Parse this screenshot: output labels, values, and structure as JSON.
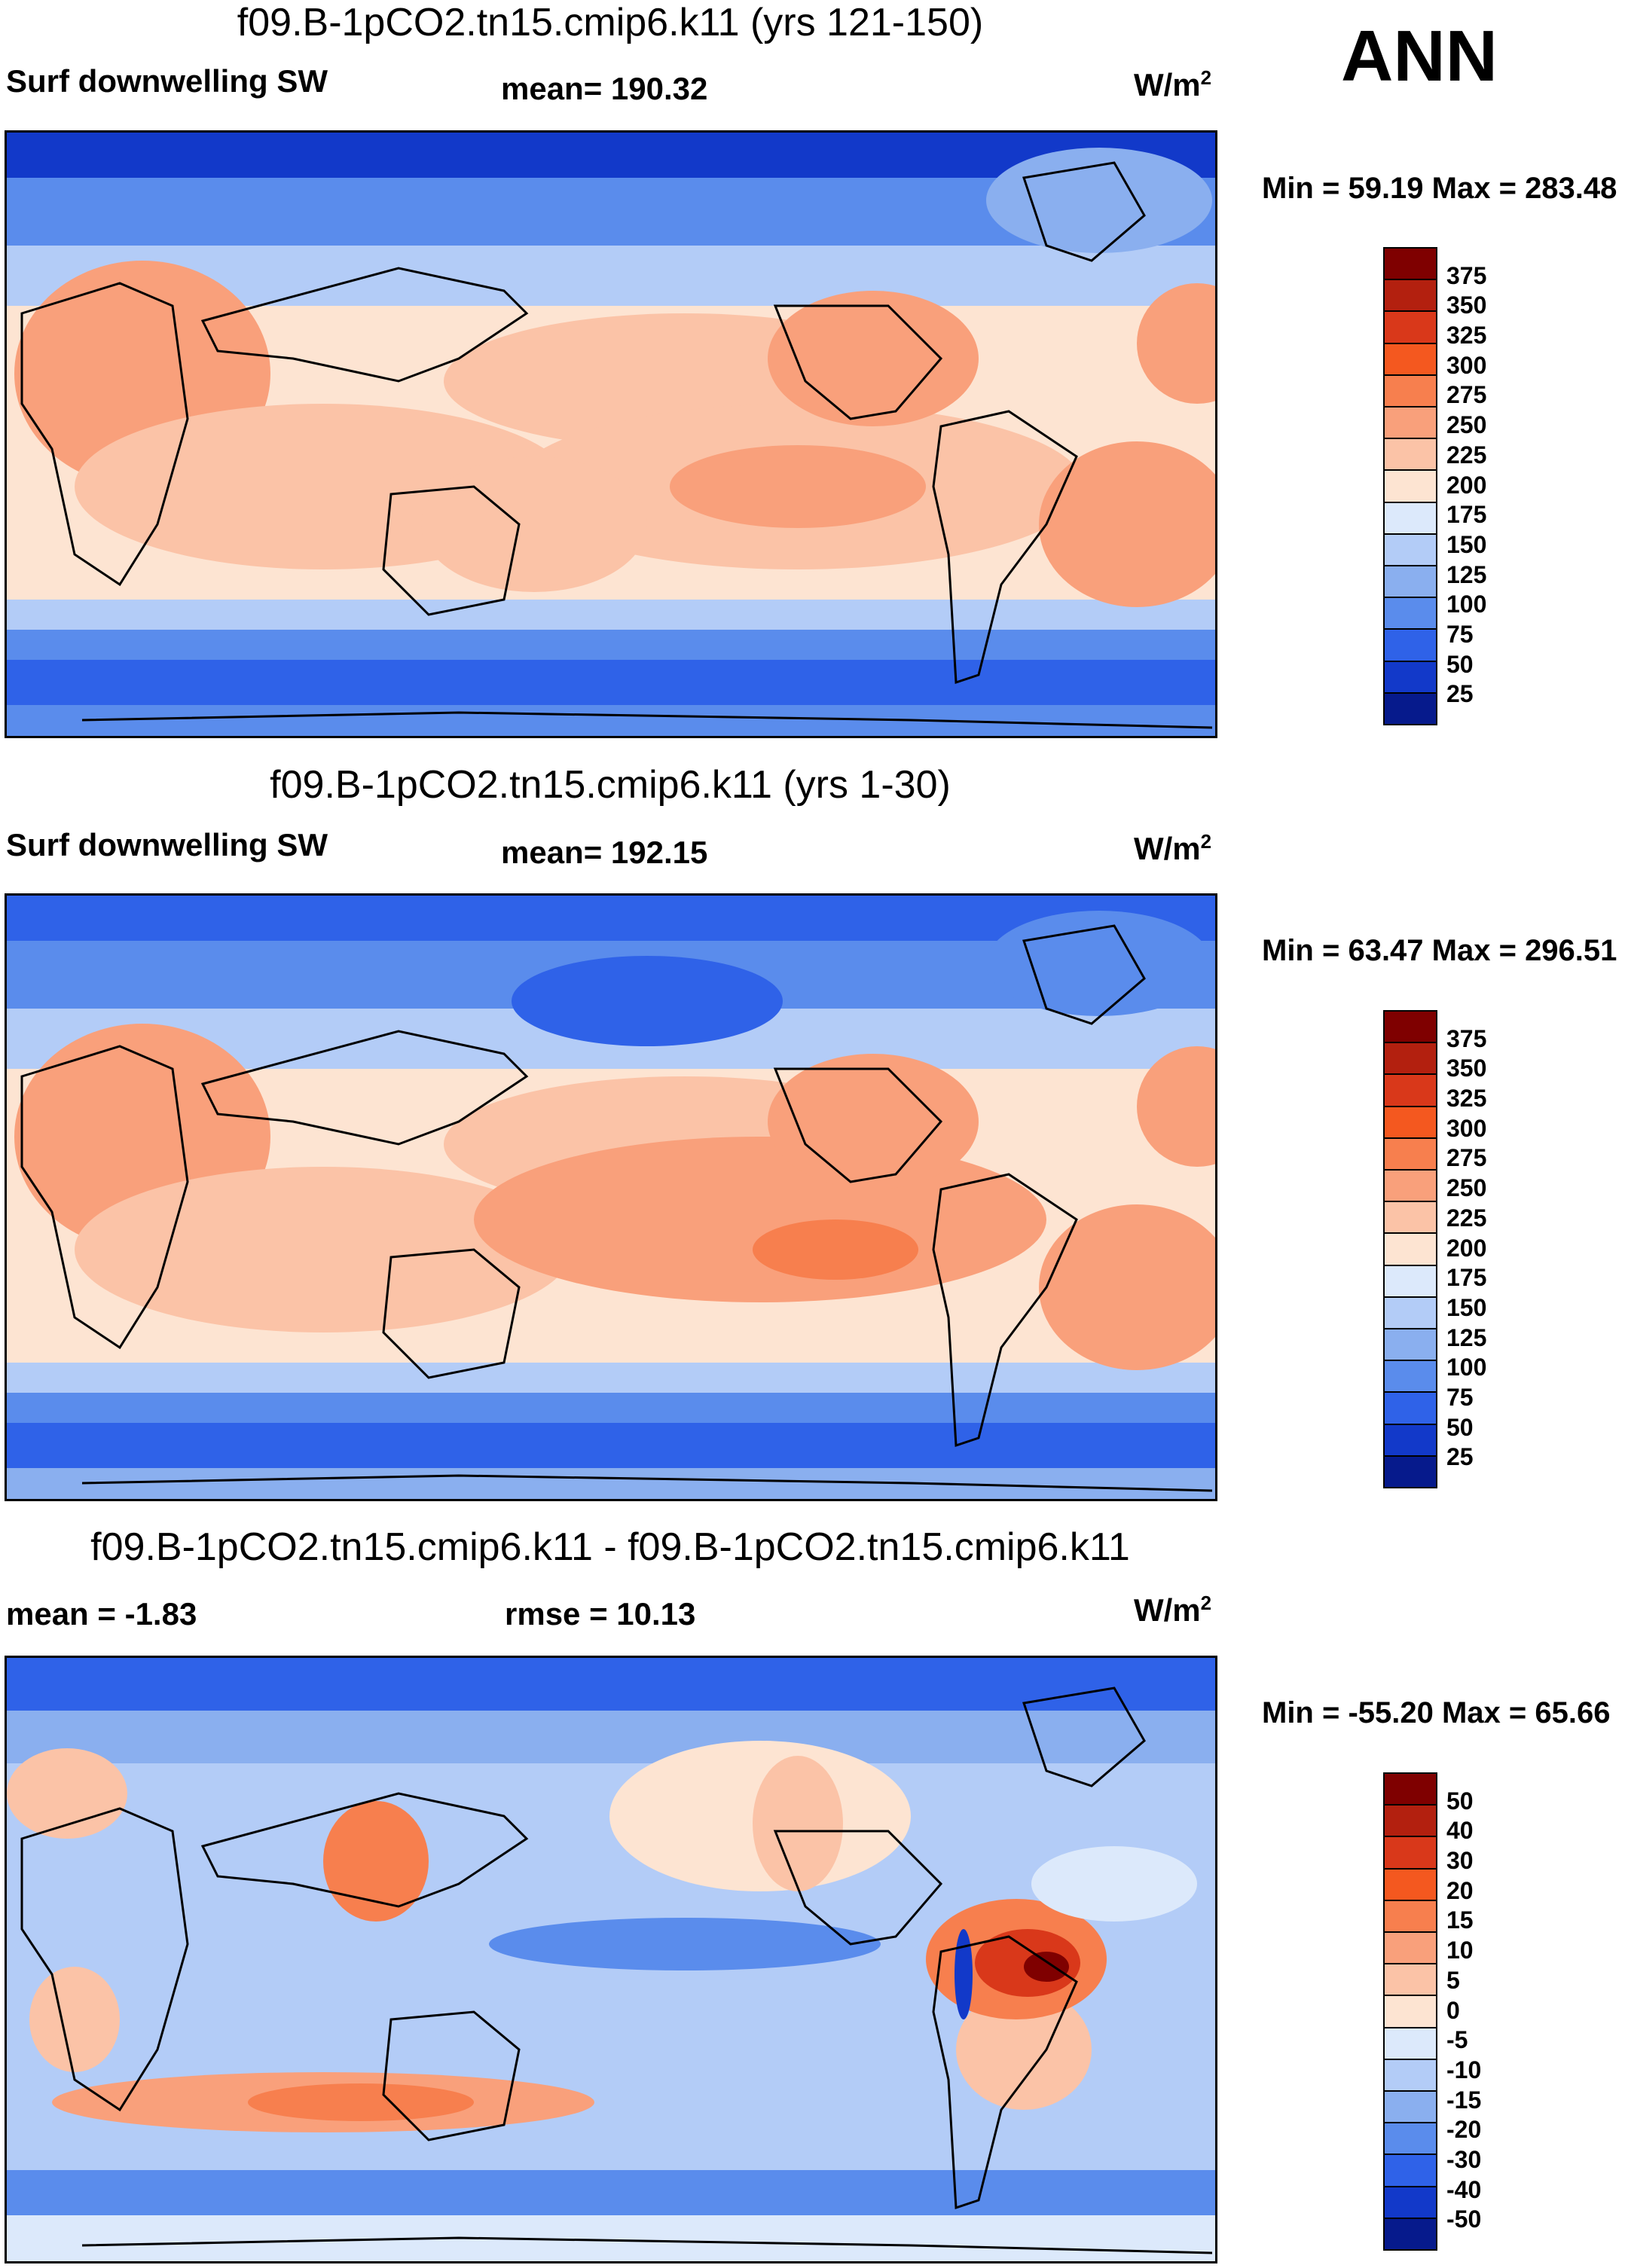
{
  "season": "ANN",
  "panels": [
    {
      "title": "f09.B-1pCO2.tn15.cmip6.k11 (yrs 121-150)",
      "left_label": "Surf downwelling SW",
      "center_label": "mean= 190.32",
      "units_base": "W/m",
      "units_sup": "2",
      "minmax": "Min =  59.19 Max = 283.48",
      "colorbar_labels": [
        "375",
        "350",
        "325",
        "300",
        "275",
        "250",
        "225",
        "200",
        "175",
        "150",
        "125",
        "100",
        "75",
        "50",
        "25"
      ]
    },
    {
      "title": "f09.B-1pCO2.tn15.cmip6.k11 (yrs 1-30)",
      "left_label": "Surf downwelling SW",
      "center_label": "mean= 192.15",
      "units_base": "W/m",
      "units_sup": "2",
      "minmax": "Min =  63.47 Max = 296.51",
      "colorbar_labels": [
        "375",
        "350",
        "325",
        "300",
        "275",
        "250",
        "225",
        "200",
        "175",
        "150",
        "125",
        "100",
        "75",
        "50",
        "25"
      ]
    },
    {
      "title": "f09.B-1pCO2.tn15.cmip6.k11 - f09.B-1pCO2.tn15.cmip6.k11",
      "left_label": "mean =  -1.83",
      "center_label": "rmse =  10.13",
      "units_base": "W/m",
      "units_sup": "2",
      "minmax": "Min = -55.20 Max =  65.66",
      "colorbar_labels": [
        "50",
        "40",
        "30",
        "20",
        "15",
        "10",
        "5",
        "0",
        "-5",
        "-10",
        "-15",
        "-20",
        "-30",
        "-40",
        "-50"
      ]
    }
  ],
  "colors": {
    "abs_scale": [
      "#7f0000",
      "#b3200f",
      "#d9381a",
      "#f4581f",
      "#f77f4e",
      "#f9a07b",
      "#fbc3a7",
      "#fde4d2",
      "#dce9fb",
      "#b3ccf7",
      "#8aafef",
      "#5a8cec",
      "#2f62e8",
      "#1239c9",
      "#061a8c"
    ],
    "diff_scale": [
      "#7f0000",
      "#b3200f",
      "#d9381a",
      "#f4581f",
      "#f77f4e",
      "#f9a07b",
      "#fbc3a7",
      "#fde4d2",
      "#dce9fb",
      "#b3ccf7",
      "#8aafef",
      "#5a8cec",
      "#2f62e8",
      "#1239c9",
      "#061a8c"
    ]
  }
}
